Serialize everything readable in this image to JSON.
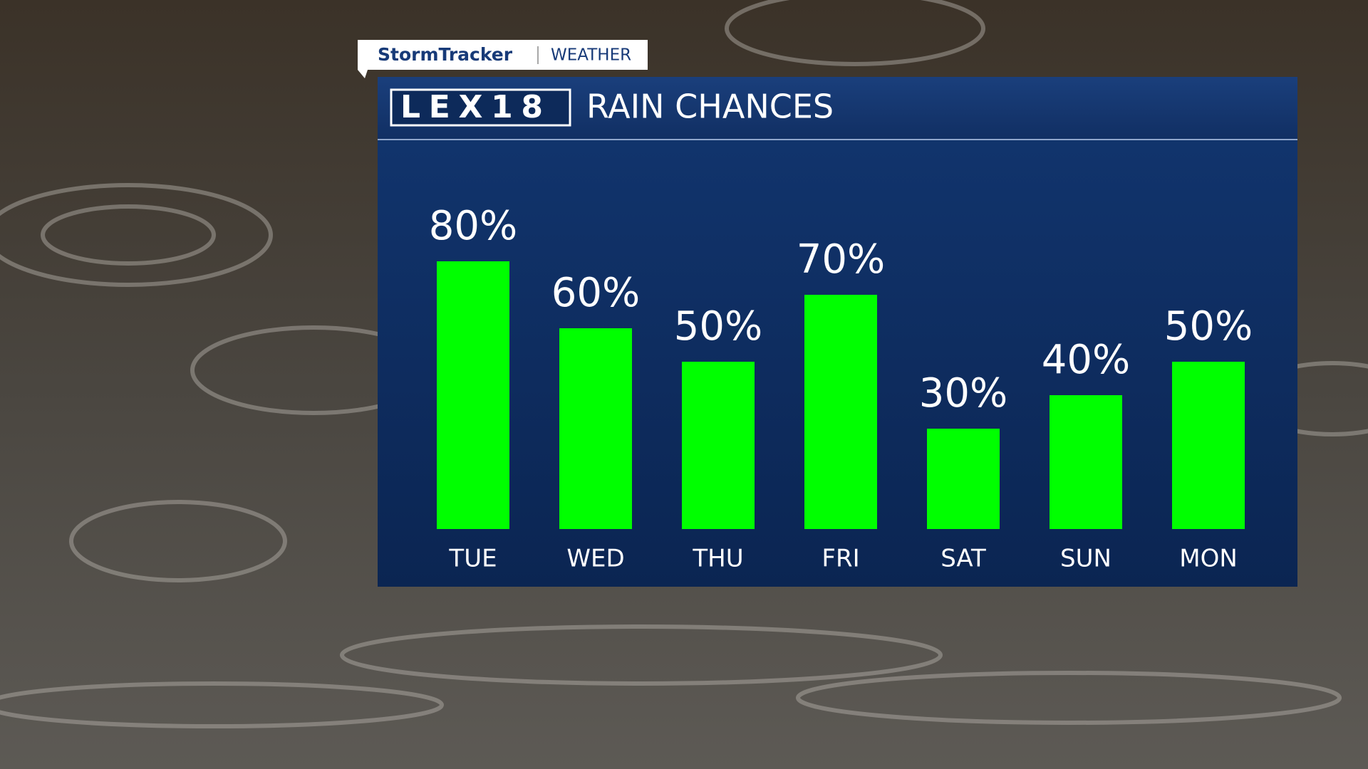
{
  "chart_data": {
    "type": "bar",
    "brand": "StormTracker",
    "section": "WEATHER",
    "logo": "LEX18",
    "title": "RAIN CHANCES",
    "categories": [
      "TUE",
      "WED",
      "THU",
      "FRI",
      "SAT",
      "SUN",
      "MON"
    ],
    "values": [
      80,
      60,
      50,
      70,
      30,
      40,
      50
    ],
    "value_labels": [
      "80%",
      "60%",
      "50%",
      "70%",
      "30%",
      "40%",
      "50%"
    ],
    "color": "#00ff00"
  }
}
